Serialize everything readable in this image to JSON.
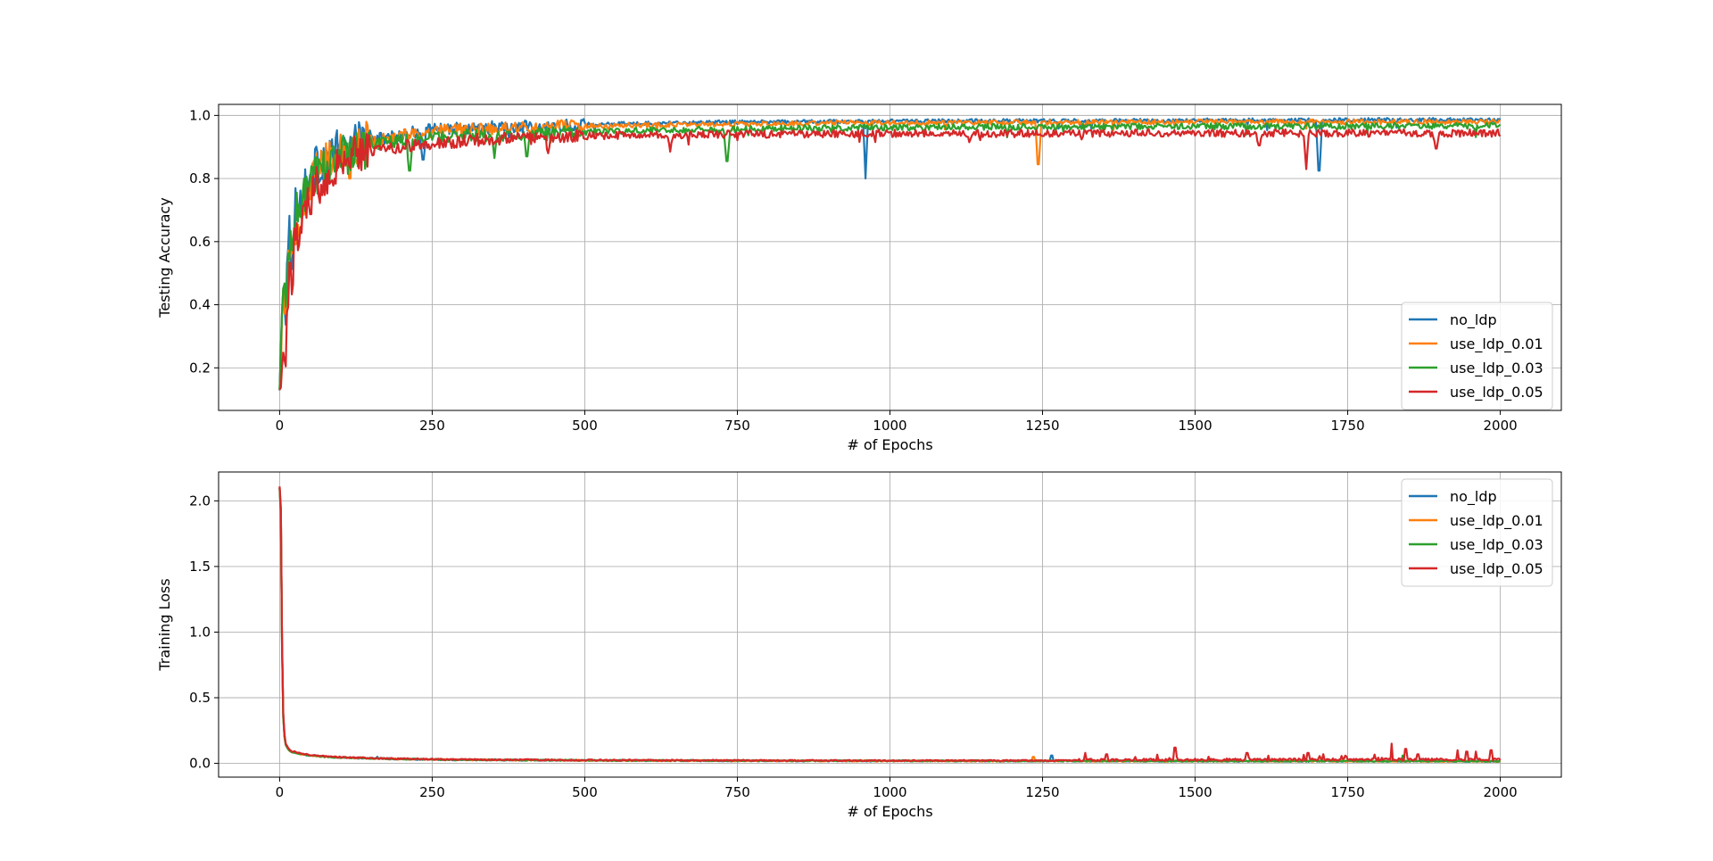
{
  "colors": {
    "no_ldp": "#1f77b4",
    "use_ldp_0.01": "#ff7f0e",
    "use_ldp_0.03": "#2ca02c",
    "use_ldp_0.05": "#d62728",
    "grid": "#b0b0b0",
    "axes": "#000000",
    "background": "#ffffff"
  },
  "chart_data": [
    {
      "type": "line",
      "title": "",
      "xlabel": "# of Epochs",
      "ylabel": "Testing Accuracy",
      "xlim": [
        -100,
        2100
      ],
      "ylim": [
        0.065,
        1.035
      ],
      "xticks": [
        0,
        250,
        500,
        750,
        1000,
        1250,
        1500,
        1750,
        2000
      ],
      "xtick_labels": [
        "0",
        "250",
        "500",
        "750",
        "1000",
        "1250",
        "1500",
        "1750",
        "2000"
      ],
      "yticks": [
        0.2,
        0.4,
        0.6,
        0.8,
        1.0
      ],
      "ytick_labels": [
        "0.2",
        "0.4",
        "0.6",
        "0.8",
        "1.0"
      ],
      "grid": true,
      "legend": "lower right",
      "x": [
        0,
        5,
        10,
        15,
        20,
        25,
        30,
        40,
        50,
        60,
        70,
        80,
        90,
        100,
        125,
        150,
        200,
        250,
        300,
        400,
        500,
        600,
        700,
        800,
        900,
        1000,
        1200,
        1400,
        1600,
        1800,
        2000
      ],
      "series": [
        {
          "name": "no_ldp",
          "values": [
            0.11,
            0.5,
            0.4,
            0.65,
            0.55,
            0.72,
            0.7,
            0.76,
            0.8,
            0.84,
            0.86,
            0.87,
            0.88,
            0.89,
            0.91,
            0.92,
            0.94,
            0.955,
            0.96,
            0.965,
            0.972,
            0.975,
            0.978,
            0.98,
            0.981,
            0.982,
            0.983,
            0.984,
            0.985,
            0.986,
            0.986
          ],
          "dips": [
            [
              960,
              0.8
            ],
            [
              1703,
              0.825
            ],
            [
              235,
              0.86
            ]
          ]
        },
        {
          "name": "use_ldp_0.01",
          "values": [
            0.11,
            0.4,
            0.35,
            0.55,
            0.5,
            0.65,
            0.66,
            0.74,
            0.79,
            0.82,
            0.84,
            0.85,
            0.86,
            0.87,
            0.9,
            0.92,
            0.94,
            0.95,
            0.955,
            0.962,
            0.967,
            0.97,
            0.972,
            0.974,
            0.976,
            0.977,
            0.978,
            0.979,
            0.98,
            0.98,
            0.98
          ],
          "dips": [
            [
              1243,
              0.845
            ],
            [
              115,
              0.8
            ]
          ]
        },
        {
          "name": "use_ldp_0.03",
          "values": [
            0.11,
            0.45,
            0.4,
            0.6,
            0.55,
            0.7,
            0.68,
            0.75,
            0.78,
            0.81,
            0.83,
            0.85,
            0.86,
            0.87,
            0.89,
            0.905,
            0.92,
            0.93,
            0.935,
            0.942,
            0.948,
            0.952,
            0.955,
            0.958,
            0.96,
            0.962,
            0.964,
            0.965,
            0.966,
            0.967,
            0.968
          ],
          "dips": [
            [
              733,
              0.855
            ],
            [
              213,
              0.825
            ],
            [
              352,
              0.865
            ],
            [
              405,
              0.87
            ]
          ]
        },
        {
          "name": "use_ldp_0.05",
          "values": [
            0.11,
            0.3,
            0.25,
            0.5,
            0.45,
            0.62,
            0.6,
            0.7,
            0.74,
            0.78,
            0.8,
            0.82,
            0.84,
            0.85,
            0.87,
            0.885,
            0.9,
            0.91,
            0.92,
            0.928,
            0.935,
            0.938,
            0.94,
            0.941,
            0.942,
            0.943,
            0.943,
            0.944,
            0.944,
            0.944,
            0.944
          ],
          "dips": [
            [
              1682,
              0.83
            ],
            [
              640,
              0.885
            ],
            [
              1895,
              0.895
            ],
            [
              1605,
              0.905
            ],
            [
              1130,
              0.915
            ],
            [
              440,
              0.88
            ]
          ]
        }
      ]
    },
    {
      "type": "line",
      "title": "",
      "xlabel": "# of Epochs",
      "ylabel": "Training Loss",
      "xlim": [
        -100,
        2100
      ],
      "ylim": [
        -0.105,
        2.22
      ],
      "xticks": [
        0,
        250,
        500,
        750,
        1000,
        1250,
        1500,
        1750,
        2000
      ],
      "xtick_labels": [
        "0",
        "250",
        "500",
        "750",
        "1000",
        "1250",
        "1500",
        "1750",
        "2000"
      ],
      "yticks": [
        0.0,
        0.5,
        1.0,
        1.5,
        2.0
      ],
      "ytick_labels": [
        "0.0",
        "0.5",
        "1.0",
        "1.5",
        "2.0"
      ],
      "grid": true,
      "legend": "upper right",
      "x": [
        0,
        2,
        4,
        6,
        8,
        10,
        15,
        20,
        30,
        50,
        75,
        100,
        150,
        200,
        300,
        500,
        750,
        1000,
        1250,
        1500,
        1750,
        2000
      ],
      "series": [
        {
          "name": "no_ldp",
          "values": [
            2.1,
            1.9,
            0.9,
            0.35,
            0.2,
            0.14,
            0.1,
            0.085,
            0.07,
            0.055,
            0.045,
            0.04,
            0.033,
            0.028,
            0.022,
            0.018,
            0.015,
            0.014,
            0.013,
            0.012,
            0.012,
            0.011
          ],
          "spikes": [
            [
              1265,
              0.06
            ],
            [
              160,
              0.05
            ]
          ]
        },
        {
          "name": "use_ldp_0.01",
          "values": [
            2.1,
            1.9,
            0.9,
            0.35,
            0.2,
            0.14,
            0.1,
            0.085,
            0.07,
            0.055,
            0.045,
            0.04,
            0.033,
            0.028,
            0.022,
            0.018,
            0.015,
            0.014,
            0.013,
            0.012,
            0.012,
            0.011
          ],
          "spikes": [
            [
              1235,
              0.05
            ]
          ]
        },
        {
          "name": "use_ldp_0.03",
          "values": [
            2.1,
            1.9,
            0.9,
            0.35,
            0.2,
            0.14,
            0.1,
            0.085,
            0.07,
            0.055,
            0.045,
            0.04,
            0.033,
            0.028,
            0.022,
            0.018,
            0.015,
            0.014,
            0.013,
            0.012,
            0.012,
            0.011
          ],
          "spikes": [
            [
              1840,
              0.06
            ]
          ]
        },
        {
          "name": "use_ldp_0.05",
          "values": [
            2.11,
            1.95,
            0.95,
            0.38,
            0.22,
            0.15,
            0.11,
            0.09,
            0.075,
            0.058,
            0.048,
            0.042,
            0.035,
            0.03,
            0.024,
            0.02,
            0.017,
            0.016,
            0.016,
            0.018,
            0.02,
            0.02
          ],
          "spikes": [
            [
              1320,
              0.08
            ],
            [
              1355,
              0.07
            ],
            [
              1467,
              0.12
            ],
            [
              1585,
              0.08
            ],
            [
              1685,
              0.08
            ],
            [
              1710,
              0.07
            ],
            [
              1822,
              0.15
            ],
            [
              1845,
              0.11
            ],
            [
              1865,
              0.07
            ],
            [
              1930,
              0.1
            ],
            [
              1945,
              0.09
            ],
            [
              1960,
              0.09
            ],
            [
              1985,
              0.1
            ]
          ]
        }
      ]
    }
  ]
}
